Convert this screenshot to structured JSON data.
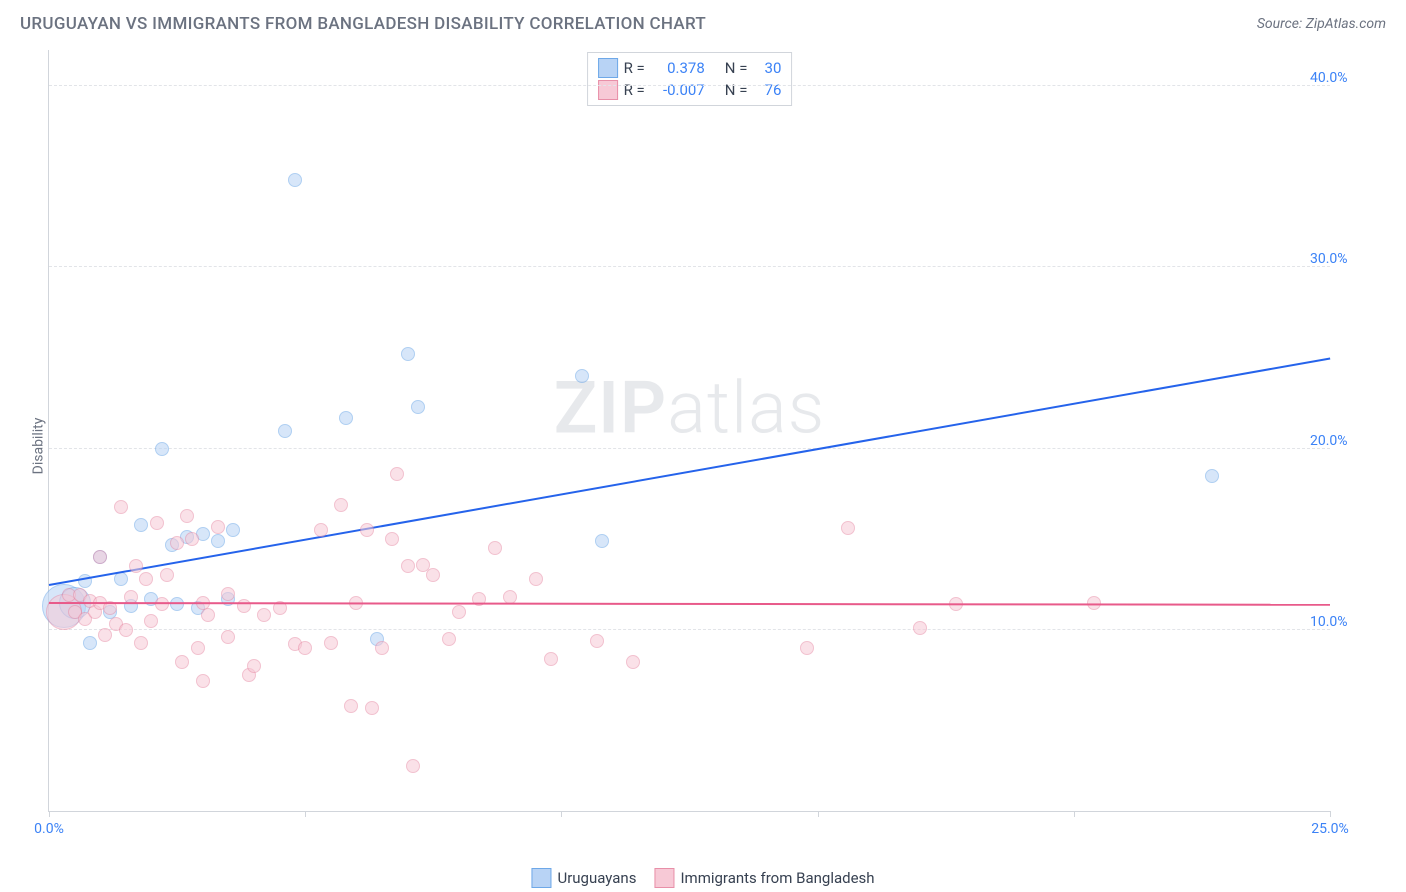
{
  "title": "URUGUAYAN VS IMMIGRANTS FROM BANGLADESH DISABILITY CORRELATION CHART",
  "source_label": "Source: ZipAtlas.com",
  "watermark": {
    "bold": "ZIP",
    "light": "atlas"
  },
  "y_axis_label": "Disability",
  "chart": {
    "type": "scatter",
    "xlim": [
      0,
      25
    ],
    "ylim": [
      0,
      42
    ],
    "background_color": "#ffffff",
    "grid_color": "#e2e4e8",
    "axis_color": "#d1d5db",
    "tick_color": "#3b82f6",
    "x_ticks": [
      0,
      5,
      10,
      15,
      20,
      25
    ],
    "x_tick_labels": [
      "0.0%",
      "",
      "",
      "",
      "",
      "25.0%"
    ],
    "y_gridlines": [
      10,
      20,
      30,
      40
    ],
    "y_tick_labels": [
      "10.0%",
      "20.0%",
      "30.0%",
      "40.0%"
    ],
    "point_radius": 7,
    "point_stroke_width": 1.5,
    "series": [
      {
        "key": "uruguayans",
        "label": "Uruguayans",
        "fill": "#b8d3f5",
        "stroke": "#6ea8e8",
        "fill_opacity": 0.55,
        "r_value": "0.378",
        "n_value": "30",
        "regression": {
          "x1": 0,
          "y1": 12.5,
          "x2": 25,
          "y2": 25.0,
          "color": "#2563eb",
          "width": 2
        },
        "points": [
          {
            "x": 0.3,
            "y": 11.3,
            "r": 22
          },
          {
            "x": 0.5,
            "y": 11.5,
            "r": 16
          },
          {
            "x": 0.7,
            "y": 12.7
          },
          {
            "x": 0.8,
            "y": 9.3
          },
          {
            "x": 1.0,
            "y": 14.0
          },
          {
            "x": 1.2,
            "y": 11.0
          },
          {
            "x": 1.4,
            "y": 12.8
          },
          {
            "x": 1.6,
            "y": 11.3
          },
          {
            "x": 1.8,
            "y": 15.8
          },
          {
            "x": 2.0,
            "y": 11.7
          },
          {
            "x": 2.2,
            "y": 20.0
          },
          {
            "x": 2.4,
            "y": 14.7
          },
          {
            "x": 2.5,
            "y": 11.4
          },
          {
            "x": 2.7,
            "y": 15.1
          },
          {
            "x": 2.9,
            "y": 11.2
          },
          {
            "x": 3.0,
            "y": 15.3
          },
          {
            "x": 3.3,
            "y": 14.9
          },
          {
            "x": 3.5,
            "y": 11.7
          },
          {
            "x": 3.6,
            "y": 15.5
          },
          {
            "x": 4.6,
            "y": 21.0
          },
          {
            "x": 4.8,
            "y": 34.8
          },
          {
            "x": 5.8,
            "y": 21.7
          },
          {
            "x": 6.4,
            "y": 9.5
          },
          {
            "x": 7.0,
            "y": 25.2
          },
          {
            "x": 7.2,
            "y": 22.3
          },
          {
            "x": 10.4,
            "y": 24.0
          },
          {
            "x": 10.8,
            "y": 14.9
          },
          {
            "x": 22.7,
            "y": 18.5
          }
        ]
      },
      {
        "key": "bangladesh",
        "label": "Immigrants from Bangladesh",
        "fill": "#f7c9d6",
        "stroke": "#e88fa8",
        "fill_opacity": 0.55,
        "r_value": "-0.007",
        "n_value": "76",
        "regression": {
          "x1": 0,
          "y1": 11.5,
          "x2": 25,
          "y2": 11.4,
          "color": "#e85a8a",
          "width": 2
        },
        "points": [
          {
            "x": 0.3,
            "y": 11.0,
            "r": 18
          },
          {
            "x": 0.4,
            "y": 11.9
          },
          {
            "x": 0.5,
            "y": 11.0
          },
          {
            "x": 0.6,
            "y": 11.9
          },
          {
            "x": 0.7,
            "y": 10.6
          },
          {
            "x": 0.8,
            "y": 11.6
          },
          {
            "x": 0.9,
            "y": 11.0
          },
          {
            "x": 1.0,
            "y": 11.5
          },
          {
            "x": 1.0,
            "y": 14.0
          },
          {
            "x": 1.1,
            "y": 9.7
          },
          {
            "x": 1.2,
            "y": 11.2
          },
          {
            "x": 1.3,
            "y": 10.3
          },
          {
            "x": 1.4,
            "y": 16.8
          },
          {
            "x": 1.5,
            "y": 10.0
          },
          {
            "x": 1.6,
            "y": 11.8
          },
          {
            "x": 1.7,
            "y": 13.5
          },
          {
            "x": 1.8,
            "y": 9.3
          },
          {
            "x": 1.9,
            "y": 12.8
          },
          {
            "x": 2.0,
            "y": 10.5
          },
          {
            "x": 2.1,
            "y": 15.9
          },
          {
            "x": 2.2,
            "y": 11.4
          },
          {
            "x": 2.3,
            "y": 13.0
          },
          {
            "x": 2.5,
            "y": 14.8
          },
          {
            "x": 2.6,
            "y": 8.2
          },
          {
            "x": 2.7,
            "y": 16.3
          },
          {
            "x": 2.8,
            "y": 15.0
          },
          {
            "x": 2.9,
            "y": 9.0
          },
          {
            "x": 3.0,
            "y": 7.2
          },
          {
            "x": 3.0,
            "y": 11.5
          },
          {
            "x": 3.1,
            "y": 10.8
          },
          {
            "x": 3.3,
            "y": 15.7
          },
          {
            "x": 3.5,
            "y": 12.0
          },
          {
            "x": 3.5,
            "y": 9.6
          },
          {
            "x": 3.8,
            "y": 11.3
          },
          {
            "x": 3.9,
            "y": 7.5
          },
          {
            "x": 4.0,
            "y": 8.0
          },
          {
            "x": 4.2,
            "y": 10.8
          },
          {
            "x": 4.5,
            "y": 11.2
          },
          {
            "x": 4.8,
            "y": 9.2
          },
          {
            "x": 5.0,
            "y": 9.0
          },
          {
            "x": 5.3,
            "y": 15.5
          },
          {
            "x": 5.5,
            "y": 9.3
          },
          {
            "x": 5.7,
            "y": 16.9
          },
          {
            "x": 5.9,
            "y": 5.8
          },
          {
            "x": 6.0,
            "y": 11.5
          },
          {
            "x": 6.2,
            "y": 15.5
          },
          {
            "x": 6.3,
            "y": 5.7
          },
          {
            "x": 6.5,
            "y": 9.0
          },
          {
            "x": 6.7,
            "y": 15.0
          },
          {
            "x": 6.8,
            "y": 18.6
          },
          {
            "x": 7.0,
            "y": 13.5
          },
          {
            "x": 7.1,
            "y": 2.5
          },
          {
            "x": 7.3,
            "y": 13.6
          },
          {
            "x": 7.5,
            "y": 13.0
          },
          {
            "x": 7.8,
            "y": 9.5
          },
          {
            "x": 8.0,
            "y": 11.0
          },
          {
            "x": 8.4,
            "y": 11.7
          },
          {
            "x": 8.7,
            "y": 14.5
          },
          {
            "x": 9.0,
            "y": 11.8
          },
          {
            "x": 9.5,
            "y": 12.8
          },
          {
            "x": 9.8,
            "y": 8.4
          },
          {
            "x": 10.7,
            "y": 9.4
          },
          {
            "x": 11.4,
            "y": 8.2
          },
          {
            "x": 14.8,
            "y": 9.0
          },
          {
            "x": 15.6,
            "y": 15.6
          },
          {
            "x": 17.0,
            "y": 10.1
          },
          {
            "x": 17.7,
            "y": 11.4
          },
          {
            "x": 20.4,
            "y": 11.5
          }
        ]
      }
    ]
  },
  "stats_legend": {
    "r_label": "R =",
    "n_label": "N ="
  }
}
